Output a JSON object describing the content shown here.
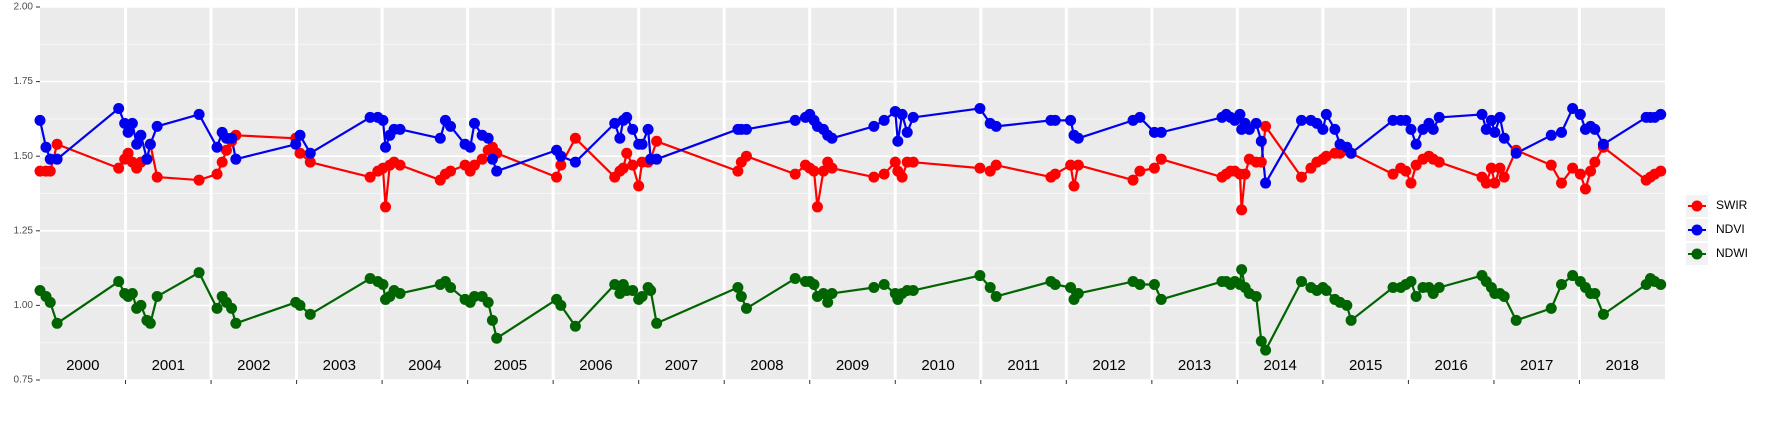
{
  "chart_data": {
    "type": "line",
    "x": [
      2000.0,
      2000.07,
      2000.12,
      2000.2,
      2000.92,
      2000.99,
      2001.03,
      2001.08,
      2001.13,
      2001.18,
      2001.25,
      2001.29,
      2001.37,
      2001.86,
      2002.07,
      2002.13,
      2002.18,
      2002.24,
      2002.29,
      2002.99,
      2003.04,
      2003.16,
      2003.86,
      2003.95,
      2004.01,
      2004.04,
      2004.09,
      2004.14,
      2004.21,
      2004.68,
      2004.74,
      2004.8,
      2004.97,
      2005.03,
      2005.08,
      2005.17,
      2005.24,
      2005.29,
      2005.34,
      2006.04,
      2006.09,
      2006.26,
      2006.72,
      2006.78,
      2006.82,
      2006.86,
      2006.93,
      2007.0,
      2007.04,
      2007.11,
      2007.14,
      2007.21,
      2008.16,
      2008.2,
      2008.26,
      2008.83,
      2008.95,
      2009.0,
      2009.05,
      2009.09,
      2009.16,
      2009.21,
      2009.26,
      2009.75,
      2009.87,
      2010.0,
      2010.03,
      2010.08,
      2010.14,
      2010.21,
      2010.99,
      2011.11,
      2011.18,
      2011.82,
      2011.87,
      2012.05,
      2012.09,
      2012.14,
      2012.78,
      2012.86,
      2013.03,
      2013.11,
      2013.82,
      2013.87,
      2013.92,
      2013.97,
      2014.03,
      2014.05,
      2014.09,
      2014.14,
      2014.22,
      2014.28,
      2014.33,
      2014.75,
      2014.86,
      2014.93,
      2015.0,
      2015.04,
      2015.14,
      2015.2,
      2015.28,
      2015.33,
      2015.82,
      2015.91,
      2015.97,
      2016.03,
      2016.09,
      2016.17,
      2016.24,
      2016.29,
      2016.36,
      2016.86,
      2016.91,
      2016.97,
      2017.01,
      2017.07,
      2017.12,
      2017.26,
      2017.67,
      2017.79,
      2017.92,
      2018.01,
      2018.07,
      2018.13,
      2018.18,
      2018.28,
      2018.78,
      2018.83,
      2018.88,
      2018.95
    ],
    "series": [
      {
        "name": "SWIR",
        "color": "#ff0000",
        "values": [
          1.45,
          1.45,
          1.45,
          1.54,
          1.46,
          1.49,
          1.51,
          1.48,
          1.46,
          1.48,
          1.49,
          1.54,
          1.43,
          1.42,
          1.44,
          1.48,
          1.52,
          1.55,
          1.57,
          1.56,
          1.51,
          1.48,
          1.43,
          1.45,
          1.46,
          1.33,
          1.47,
          1.48,
          1.47,
          1.42,
          1.44,
          1.45,
          1.47,
          1.45,
          1.47,
          1.49,
          1.52,
          1.53,
          1.51,
          1.43,
          1.47,
          1.56,
          1.43,
          1.45,
          1.46,
          1.51,
          1.47,
          1.4,
          1.48,
          1.48,
          1.49,
          1.55,
          1.45,
          1.48,
          1.5,
          1.44,
          1.47,
          1.46,
          1.45,
          1.33,
          1.45,
          1.48,
          1.46,
          1.43,
          1.44,
          1.48,
          1.45,
          1.43,
          1.48,
          1.48,
          1.46,
          1.45,
          1.47,
          1.43,
          1.44,
          1.47,
          1.4,
          1.47,
          1.42,
          1.45,
          1.46,
          1.49,
          1.43,
          1.44,
          1.45,
          1.45,
          1.44,
          1.32,
          1.44,
          1.49,
          1.48,
          1.48,
          1.6,
          1.43,
          1.46,
          1.48,
          1.49,
          1.5,
          1.51,
          1.51,
          1.52,
          1.51,
          1.44,
          1.46,
          1.45,
          1.41,
          1.47,
          1.49,
          1.5,
          1.49,
          1.48,
          1.43,
          1.41,
          1.46,
          1.41,
          1.46,
          1.43,
          1.52,
          1.47,
          1.41,
          1.46,
          1.44,
          1.39,
          1.45,
          1.48,
          1.53,
          1.42,
          1.43,
          1.44,
          1.45
        ]
      },
      {
        "name": "NDVI",
        "color": "#0000ee",
        "values": [
          1.62,
          1.53,
          1.49,
          1.49,
          1.66,
          1.61,
          1.58,
          1.61,
          1.54,
          1.57,
          1.49,
          1.54,
          1.6,
          1.64,
          1.53,
          1.58,
          1.56,
          1.56,
          1.49,
          1.54,
          1.57,
          1.51,
          1.63,
          1.63,
          1.62,
          1.53,
          1.57,
          1.59,
          1.59,
          1.56,
          1.62,
          1.6,
          1.54,
          1.53,
          1.61,
          1.57,
          1.56,
          1.49,
          1.45,
          1.52,
          1.5,
          1.48,
          1.61,
          1.56,
          1.62,
          1.63,
          1.59,
          1.54,
          1.54,
          1.59,
          1.49,
          1.49,
          1.59,
          1.59,
          1.59,
          1.62,
          1.63,
          1.64,
          1.62,
          1.6,
          1.59,
          1.57,
          1.56,
          1.6,
          1.62,
          1.65,
          1.55,
          1.64,
          1.58,
          1.63,
          1.66,
          1.61,
          1.6,
          1.62,
          1.62,
          1.62,
          1.57,
          1.56,
          1.62,
          1.63,
          1.58,
          1.58,
          1.63,
          1.64,
          1.63,
          1.62,
          1.64,
          1.59,
          1.61,
          1.59,
          1.61,
          1.55,
          1.41,
          1.62,
          1.62,
          1.61,
          1.59,
          1.64,
          1.59,
          1.54,
          1.53,
          1.51,
          1.62,
          1.62,
          1.62,
          1.59,
          1.54,
          1.59,
          1.61,
          1.59,
          1.63,
          1.64,
          1.59,
          1.62,
          1.58,
          1.63,
          1.56,
          1.51,
          1.57,
          1.58,
          1.66,
          1.64,
          1.59,
          1.6,
          1.59,
          1.54,
          1.63,
          1.63,
          1.63,
          1.64
        ]
      },
      {
        "name": "NDWI",
        "color": "#006400",
        "values": [
          1.05,
          1.03,
          1.01,
          0.94,
          1.08,
          1.04,
          1.03,
          1.04,
          0.99,
          1.0,
          0.95,
          0.94,
          1.03,
          1.11,
          0.99,
          1.03,
          1.01,
          0.99,
          0.94,
          1.01,
          1.0,
          0.97,
          1.09,
          1.08,
          1.07,
          1.02,
          1.03,
          1.05,
          1.04,
          1.07,
          1.08,
          1.06,
          1.02,
          1.01,
          1.03,
          1.03,
          1.01,
          0.95,
          0.89,
          1.02,
          1.0,
          0.93,
          1.07,
          1.04,
          1.07,
          1.05,
          1.05,
          1.02,
          1.03,
          1.06,
          1.05,
          0.94,
          1.06,
          1.03,
          0.99,
          1.09,
          1.08,
          1.08,
          1.07,
          1.03,
          1.04,
          1.01,
          1.04,
          1.06,
          1.07,
          1.04,
          1.02,
          1.04,
          1.05,
          1.05,
          1.1,
          1.06,
          1.03,
          1.08,
          1.07,
          1.06,
          1.02,
          1.04,
          1.08,
          1.07,
          1.07,
          1.02,
          1.08,
          1.08,
          1.07,
          1.08,
          1.07,
          1.12,
          1.06,
          1.04,
          1.03,
          0.88,
          0.85,
          1.08,
          1.06,
          1.05,
          1.06,
          1.05,
          1.02,
          1.01,
          1.0,
          0.95,
          1.06,
          1.06,
          1.07,
          1.08,
          1.03,
          1.06,
          1.06,
          1.04,
          1.06,
          1.1,
          1.08,
          1.06,
          1.04,
          1.04,
          1.03,
          0.95,
          0.99,
          1.07,
          1.1,
          1.08,
          1.06,
          1.04,
          1.04,
          0.97,
          1.07,
          1.09,
          1.08,
          1.07
        ]
      }
    ],
    "xlim": [
      2000,
      2019
    ],
    "xticks": [
      2001,
      2002,
      2003,
      2004,
      2005,
      2006,
      2007,
      2008,
      2009,
      2010,
      2011,
      2012,
      2013,
      2014,
      2015,
      2016,
      2017,
      2018
    ],
    "ylim": [
      0.75,
      2
    ],
    "yticks": [
      0.75,
      {
        "value": 1,
        "label": "1.00"
      },
      1.25,
      {
        "value": 1.5,
        "label": "1.50"
      },
      1.75,
      {
        "value": 2,
        "label": "2.00"
      }
    ],
    "yminorticks": [
      0.875,
      1.125,
      1.375,
      1.625,
      1.875
    ],
    "year_labels": [
      {
        "text": "2000",
        "x": 2000.5
      },
      {
        "text": "2001",
        "x": 2001.5
      },
      {
        "text": "2002",
        "x": 2002.5
      },
      {
        "text": "2003",
        "x": 2003.5
      },
      {
        "text": "2004",
        "x": 2004.5
      },
      {
        "text": "2005",
        "x": 2005.5
      },
      {
        "text": "2006",
        "x": 2006.5
      },
      {
        "text": "2007",
        "x": 2007.5
      },
      {
        "text": "2008",
        "x": 2008.5
      },
      {
        "text": "2009",
        "x": 2009.5
      },
      {
        "text": "2010",
        "x": 2010.5
      },
      {
        "text": "2011",
        "x": 2011.5
      },
      {
        "text": "2012",
        "x": 2012.5
      },
      {
        "text": "2013",
        "x": 2013.5
      },
      {
        "text": "2014",
        "x": 2014.5
      },
      {
        "text": "2015",
        "x": 2015.5
      },
      {
        "text": "2016",
        "x": 2016.5
      },
      {
        "text": "2017",
        "x": 2017.5
      },
      {
        "text": "2018",
        "x": 2018.5
      }
    ],
    "grid": true,
    "legend": "right"
  }
}
